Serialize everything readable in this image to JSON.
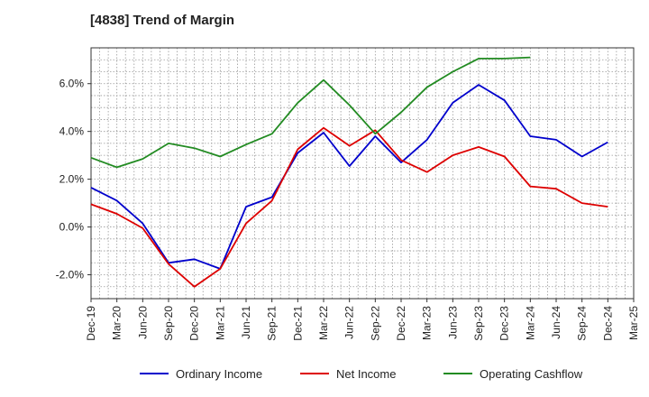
{
  "chart_data": {
    "type": "line",
    "title": "[4838]  Trend of Margin",
    "xlabel": "",
    "ylabel": "",
    "categories": [
      "Dec-19",
      "Mar-20",
      "Jun-20",
      "Sep-20",
      "Dec-20",
      "Mar-21",
      "Jun-21",
      "Sep-21",
      "Dec-21",
      "Mar-22",
      "Jun-22",
      "Sep-22",
      "Dec-22",
      "Mar-23",
      "Jun-23",
      "Sep-23",
      "Dec-23",
      "Mar-24",
      "Jun-24",
      "Sep-24",
      "Dec-24",
      "Mar-25"
    ],
    "ylim": [
      -3.0,
      7.5
    ],
    "yticks": [
      -2.0,
      0.0,
      2.0,
      4.0,
      6.0
    ],
    "ytick_labels": [
      "-2.0%",
      "0.0%",
      "2.0%",
      "4.0%",
      "6.0%"
    ],
    "grid": true,
    "legend_position": "bottom",
    "series": [
      {
        "name": "Ordinary Income",
        "color": "#0000cc",
        "values": [
          1.65,
          1.1,
          0.15,
          -1.5,
          -1.35,
          -1.75,
          0.85,
          1.25,
          3.1,
          3.95,
          2.55,
          3.8,
          2.7,
          3.65,
          5.2,
          5.95,
          5.3,
          3.8,
          3.65,
          2.95,
          3.55,
          null
        ]
      },
      {
        "name": "Net Income",
        "color": "#dd0000",
        "values": [
          0.95,
          0.55,
          -0.05,
          -1.55,
          -2.5,
          -1.75,
          0.15,
          1.1,
          3.25,
          4.15,
          3.4,
          4.05,
          2.8,
          2.3,
          3.0,
          3.35,
          2.95,
          1.7,
          1.6,
          1.0,
          0.85,
          null
        ]
      },
      {
        "name": "Operating Cashflow",
        "color": "#228b22",
        "values": [
          2.9,
          2.5,
          2.85,
          3.5,
          3.3,
          2.95,
          3.45,
          3.9,
          5.2,
          6.15,
          5.1,
          3.9,
          4.8,
          5.85,
          6.5,
          7.05,
          7.05,
          7.1,
          null,
          null,
          null,
          null
        ]
      }
    ]
  }
}
